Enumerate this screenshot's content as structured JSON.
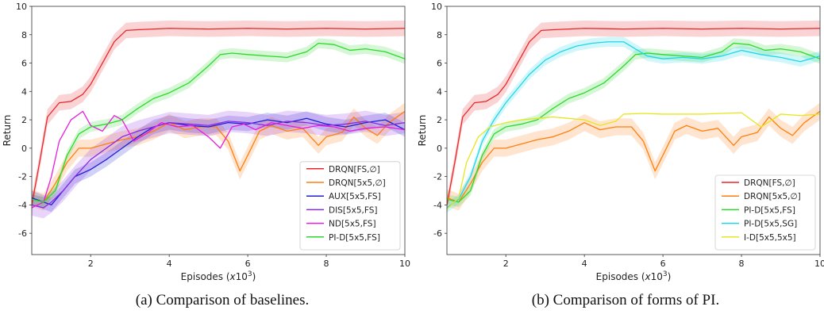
{
  "chart_data": [
    {
      "type": "line",
      "panel": "a",
      "caption": "(a) Comparison of baselines.",
      "xlabel": "Episodes (x10^3)",
      "ylabel": "Return",
      "xlim": [
        0.5,
        10
      ],
      "ylim": [
        -7.5,
        10
      ],
      "xticks": [
        2,
        4,
        6,
        8,
        10
      ],
      "yticks": [
        -6,
        -4,
        -2,
        0,
        2,
        4,
        6,
        8,
        10
      ],
      "grid": false,
      "legend_position": "lower-right",
      "series": [
        {
          "name": "DRQN[FS,∅]",
          "color": "#e8262a",
          "band": 0.55,
          "x": [
            0.5,
            0.7,
            0.9,
            1.2,
            1.5,
            1.8,
            2.0,
            2.3,
            2.6,
            2.9,
            3.2,
            4,
            5,
            6,
            7,
            8,
            9,
            10
          ],
          "y": [
            -4.0,
            -1.0,
            2.2,
            3.2,
            3.3,
            3.8,
            4.5,
            6.0,
            7.5,
            8.3,
            8.35,
            8.45,
            8.4,
            8.45,
            8.4,
            8.45,
            8.4,
            8.45
          ]
        },
        {
          "name": "DRQN[5x5,∅]",
          "color": "#ff7f0e",
          "band": 0.6,
          "x": [
            0.5,
            0.8,
            1.1,
            1.4,
            1.7,
            2.0,
            2.4,
            2.8,
            3.2,
            3.6,
            4.0,
            4.4,
            4.8,
            5.2,
            5.5,
            5.8,
            6.0,
            6.3,
            6.6,
            7.0,
            7.4,
            7.8,
            8.0,
            8.4,
            8.7,
            9.0,
            9.3,
            9.6,
            10
          ],
          "y": [
            -3.5,
            -3.8,
            -2.5,
            -1.0,
            0.0,
            0.0,
            0.3,
            0.6,
            0.8,
            1.2,
            1.8,
            1.3,
            1.5,
            1.5,
            0.5,
            -1.6,
            -0.5,
            1.2,
            1.6,
            1.2,
            1.4,
            0.2,
            0.8,
            1.1,
            2.2,
            1.4,
            0.9,
            1.8,
            2.6
          ]
        },
        {
          "name": "AUX[5x5,FS]",
          "color": "#1f1fd6",
          "band": 0.5,
          "x": [
            0.5,
            0.8,
            1.0,
            1.3,
            1.6,
            2.0,
            2.4,
            2.8,
            3.2,
            3.6,
            4.0,
            4.5,
            5.0,
            5.5,
            6.0,
            6.5,
            7.0,
            7.5,
            8.0,
            8.5,
            9.0,
            9.5,
            10
          ],
          "y": [
            -3.5,
            -3.8,
            -4.0,
            -3.0,
            -2.0,
            -1.5,
            -0.8,
            0.0,
            0.8,
            1.5,
            1.8,
            1.6,
            1.5,
            1.8,
            1.7,
            2.0,
            1.8,
            2.1,
            1.7,
            1.5,
            1.8,
            2.0,
            1.3
          ]
        },
        {
          "name": "DIS[5x5,FS]",
          "color": "#8a2be2",
          "band": 0.75,
          "x": [
            0.5,
            0.8,
            1.0,
            1.3,
            1.6,
            2.0,
            2.4,
            2.8,
            3.2,
            3.6,
            4.0,
            4.5,
            5.0,
            5.5,
            6.0,
            6.5,
            7.0,
            7.5,
            8.0,
            8.5,
            9.0,
            9.5,
            10
          ],
          "y": [
            -4.0,
            -4.2,
            -3.8,
            -3.0,
            -2.0,
            -0.8,
            0.0,
            0.8,
            1.2,
            1.5,
            1.8,
            1.7,
            1.6,
            1.9,
            1.8,
            1.6,
            1.9,
            1.8,
            1.6,
            1.7,
            1.9,
            1.6,
            1.8
          ]
        },
        {
          "name": "ND[5x5,FS]",
          "color": "#e61de0",
          "band": 0,
          "x": [
            0.5,
            0.8,
            1.0,
            1.2,
            1.5,
            1.8,
            2.0,
            2.3,
            2.6,
            2.8,
            3.1,
            3.4,
            3.8,
            4.2,
            4.6,
            5.0,
            5.3,
            5.6,
            5.9,
            6.2,
            6.6,
            7.0,
            7.4,
            7.8,
            8.2,
            8.6,
            9.0,
            9.5,
            10
          ],
          "y": [
            -4.2,
            -3.8,
            -2.0,
            0.5,
            2.0,
            2.6,
            1.6,
            1.2,
            2.3,
            2.0,
            0.5,
            1.0,
            1.8,
            1.5,
            1.6,
            0.8,
            0.0,
            1.5,
            1.7,
            1.3,
            1.8,
            1.6,
            1.4,
            1.6,
            1.5,
            1.2,
            1.4,
            1.5,
            1.3
          ]
        },
        {
          "name": "PI-D[5x5,FS]",
          "color": "#2cd92c",
          "band": 0.35,
          "x": [
            0.5,
            0.8,
            1.1,
            1.4,
            1.7,
            2.0,
            2.4,
            2.8,
            3.2,
            3.6,
            4.0,
            4.5,
            5.0,
            5.3,
            5.6,
            6.0,
            6.5,
            7.0,
            7.5,
            7.8,
            8.2,
            8.6,
            9.0,
            9.5,
            10
          ],
          "y": [
            -3.6,
            -3.8,
            -3.0,
            -0.5,
            1.0,
            1.5,
            1.7,
            2.0,
            2.8,
            3.5,
            3.9,
            4.6,
            5.8,
            6.6,
            6.7,
            6.6,
            6.5,
            6.4,
            6.8,
            7.4,
            7.3,
            6.9,
            7.0,
            6.8,
            6.3
          ]
        }
      ]
    },
    {
      "type": "line",
      "panel": "b",
      "caption": "(b) Comparison of forms of PI.",
      "xlabel": "Episodes (x10^3)",
      "ylabel": "Return",
      "xlim": [
        0.5,
        10
      ],
      "ylim": [
        -7.5,
        10
      ],
      "xticks": [
        2,
        4,
        6,
        8,
        10
      ],
      "yticks": [
        -6,
        -4,
        -2,
        0,
        2,
        4,
        6,
        8,
        10
      ],
      "grid": false,
      "legend_position": "lower-right",
      "series": [
        {
          "name": "DRQN[FS,∅]",
          "color": "#e8262a",
          "band": 0.55,
          "x": [
            0.5,
            0.7,
            0.9,
            1.2,
            1.5,
            1.8,
            2.0,
            2.3,
            2.6,
            2.9,
            3.2,
            4,
            5,
            6,
            7,
            8,
            9,
            10
          ],
          "y": [
            -4.0,
            -1.0,
            2.2,
            3.2,
            3.3,
            3.8,
            4.5,
            6.0,
            7.5,
            8.3,
            8.35,
            8.45,
            8.4,
            8.45,
            8.4,
            8.45,
            8.4,
            8.45
          ]
        },
        {
          "name": "DRQN[5x5,∅]",
          "color": "#ff7f0e",
          "band": 0.6,
          "x": [
            0.5,
            0.8,
            1.1,
            1.4,
            1.7,
            2.0,
            2.4,
            2.8,
            3.2,
            3.6,
            4.0,
            4.4,
            4.8,
            5.2,
            5.5,
            5.8,
            6.0,
            6.3,
            6.6,
            7.0,
            7.4,
            7.8,
            8.0,
            8.4,
            8.7,
            9.0,
            9.3,
            9.6,
            10
          ],
          "y": [
            -3.5,
            -3.8,
            -2.5,
            -1.0,
            0.0,
            0.0,
            0.3,
            0.6,
            0.8,
            1.2,
            1.8,
            1.3,
            1.5,
            1.5,
            0.5,
            -1.6,
            -0.5,
            1.2,
            1.6,
            1.2,
            1.4,
            0.2,
            0.8,
            1.1,
            2.2,
            1.4,
            0.9,
            1.8,
            2.6
          ]
        },
        {
          "name": "PI-D[5x5,FS]",
          "color": "#2cd92c",
          "band": 0.35,
          "x": [
            0.5,
            0.8,
            1.1,
            1.4,
            1.7,
            2.0,
            2.4,
            2.8,
            3.2,
            3.6,
            4.0,
            4.5,
            5.0,
            5.3,
            5.6,
            6.0,
            6.5,
            7.0,
            7.5,
            7.8,
            8.2,
            8.6,
            9.0,
            9.5,
            10
          ],
          "y": [
            -3.6,
            -3.8,
            -3.0,
            -0.5,
            1.0,
            1.5,
            1.7,
            2.0,
            2.8,
            3.5,
            3.9,
            4.6,
            5.8,
            6.6,
            6.7,
            6.6,
            6.5,
            6.4,
            6.8,
            7.4,
            7.3,
            6.9,
            7.0,
            6.8,
            6.3
          ]
        },
        {
          "name": "PI-D[5x5,SG]",
          "color": "#1fd6e8",
          "band": 0.35,
          "x": [
            0.5,
            0.8,
            1.1,
            1.4,
            1.7,
            2.0,
            2.3,
            2.6,
            3.0,
            3.4,
            3.8,
            4.2,
            4.6,
            5.0,
            5.3,
            5.6,
            6.0,
            6.5,
            7.0,
            7.5,
            8.0,
            8.5,
            9.0,
            9.5,
            10
          ],
          "y": [
            -4.2,
            -3.6,
            -2.0,
            0.5,
            2.0,
            3.2,
            4.2,
            5.2,
            6.2,
            6.8,
            7.2,
            7.4,
            7.5,
            7.5,
            7.0,
            6.5,
            6.3,
            6.4,
            6.3,
            6.5,
            6.9,
            6.6,
            6.4,
            6.1,
            6.5
          ]
        },
        {
          "name": "I-D[5x5,5x5]",
          "color": "#e6e61d",
          "band": 0,
          "x": [
            0.5,
            0.8,
            1.0,
            1.3,
            1.6,
            2.0,
            2.4,
            2.8,
            3.2,
            3.6,
            4.0,
            4.4,
            4.8,
            5.0,
            5.5,
            6.0,
            6.5,
            7.0,
            7.5,
            8.0,
            8.5,
            9.0,
            9.5,
            10
          ],
          "y": [
            -4.3,
            -3.5,
            -1.0,
            0.8,
            1.5,
            1.8,
            2.0,
            2.1,
            2.2,
            2.1,
            2.0,
            1.6,
            1.9,
            2.4,
            2.45,
            2.4,
            2.4,
            2.4,
            2.45,
            2.5,
            1.5,
            2.4,
            2.3,
            2.4
          ]
        }
      ]
    }
  ]
}
